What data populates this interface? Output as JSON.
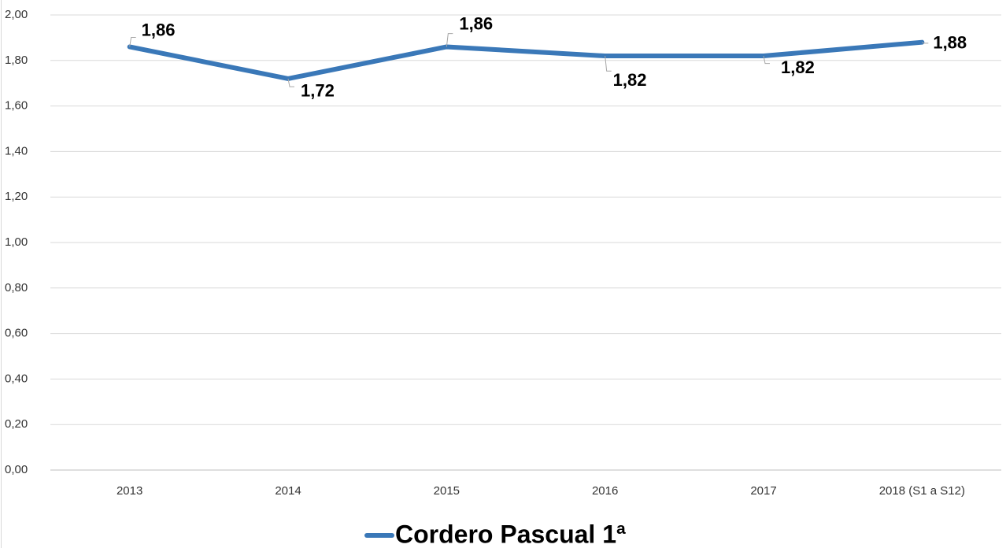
{
  "chart_data": {
    "type": "line",
    "categories": [
      "2013",
      "2014",
      "2015",
      "2016",
      "2017",
      "2018 (S1 a S12)"
    ],
    "series": [
      {
        "name": "Cordero Pascual 1ª",
        "color": "#3a78b8",
        "values": [
          1.86,
          1.72,
          1.86,
          1.82,
          1.82,
          1.88
        ],
        "value_labels": [
          "1,86",
          "1,72",
          "1,86",
          "1,82",
          "1,82",
          "1,88"
        ]
      }
    ],
    "ylim": [
      0,
      2
    ],
    "yticks": [
      {
        "value": 0,
        "label": "0,00"
      },
      {
        "value": 0.2,
        "label": "0,20"
      },
      {
        "value": 0.4,
        "label": "0,40"
      },
      {
        "value": 0.6,
        "label": "0,60"
      },
      {
        "value": 0.8,
        "label": "0,80"
      },
      {
        "value": 1,
        "label": "1,00"
      },
      {
        "value": 1.2,
        "label": "1,20"
      },
      {
        "value": 1.4,
        "label": "1,40"
      },
      {
        "value": 1.6,
        "label": "1,60"
      },
      {
        "value": 1.8,
        "label": "1,80"
      },
      {
        "value": 2,
        "label": "2,00"
      }
    ],
    "grid": true,
    "legend": "bottom"
  }
}
